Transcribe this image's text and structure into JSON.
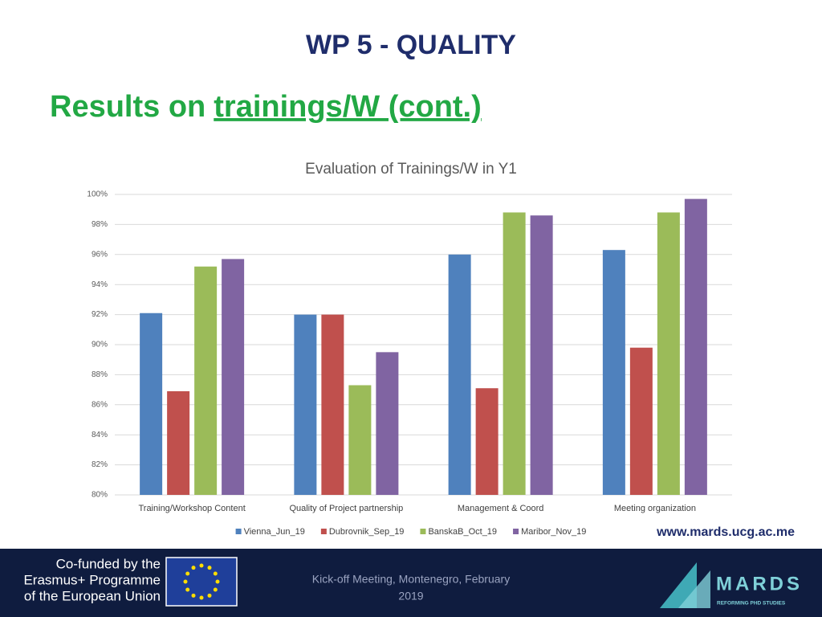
{
  "slide": {
    "title": "WP 5 -  QUALITY",
    "heading": "Results on ",
    "heading_link": "trainings/W (cont.)",
    "url": "www.mards.ucg.ac.me",
    "footer_left": [
      "Co-funded by the",
      "Erasmus+ Programme",
      "of the European Union"
    ],
    "footer_center": [
      "Kick-off Meeting, Montenegro, February",
      "2019"
    ],
    "logo": "MARDS",
    "logo_tagline": "REFORMING PHD STUDIES"
  },
  "chart_data": {
    "type": "bar",
    "title": "Evaluation of Trainings/W in Y1",
    "categories": [
      "Training/Workshop Content",
      "Quality of Project partnership",
      "Management & Coord",
      "Meeting organization"
    ],
    "series": [
      {
        "name": "Vienna_Jun_19",
        "color": "#4f81bd",
        "values": [
          92.1,
          92.0,
          96.0,
          96.3
        ]
      },
      {
        "name": "Dubrovnik_Sep_19",
        "color": "#c0504d",
        "values": [
          86.9,
          92.0,
          87.1,
          89.8
        ]
      },
      {
        "name": "BanskaB_Oct_19",
        "color": "#9bbb59",
        "values": [
          95.2,
          87.3,
          98.8,
          98.8
        ]
      },
      {
        "name": "Maribor_Nov_19",
        "color": "#8064a2",
        "values": [
          95.7,
          89.5,
          98.6,
          99.7
        ]
      }
    ],
    "ylim": [
      80,
      100
    ],
    "yticks": [
      {
        "value": 80,
        "label": "80%"
      },
      {
        "value": 82,
        "label": "82%"
      },
      {
        "value": 84,
        "label": "84%"
      },
      {
        "value": 86,
        "label": "86%"
      },
      {
        "value": 88,
        "label": "88%"
      },
      {
        "value": 90,
        "label": "90%"
      },
      {
        "value": 92,
        "label": "92%"
      },
      {
        "value": 94,
        "label": "94%"
      },
      {
        "value": 96,
        "label": "96%"
      },
      {
        "value": 98,
        "label": "98%"
      },
      {
        "value": 100,
        "label": "100%"
      }
    ],
    "grid": true,
    "legend": "bottom"
  }
}
